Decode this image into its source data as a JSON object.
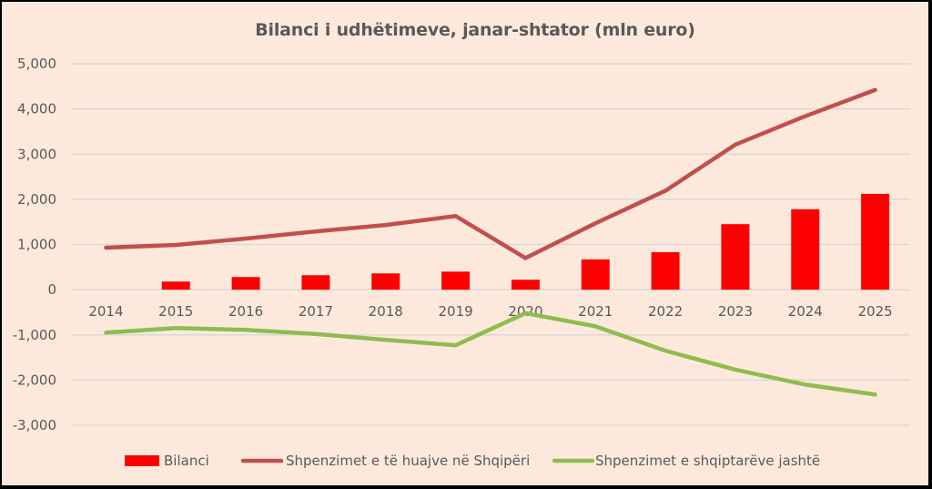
{
  "chart_data": {
    "type": "bar+line",
    "title": "Bilanci i udhëtimeve, janar-shtator (mln euro)",
    "xlabel": "",
    "ylabel": "",
    "categories": [
      "2014",
      "2015",
      "2016",
      "2017",
      "2018",
      "2019",
      "2020",
      "2021",
      "2022",
      "2023",
      "2024",
      "2025"
    ],
    "ylim": [
      -3000,
      5000
    ],
    "yticks": [
      5000,
      4000,
      3000,
      2000,
      1000,
      0,
      -1000,
      -2000,
      -3000
    ],
    "ytick_labels": [
      "5,000",
      "4,000",
      "3,000",
      "2,000",
      "1,000",
      "0",
      "-1,000",
      "-2,000",
      "-3,000"
    ],
    "grid": true,
    "legend_position": "bottom",
    "series": [
      {
        "name": "Bilanci",
        "type": "bar",
        "color": "#ff0000",
        "values": [
          null,
          180,
          280,
          320,
          360,
          400,
          220,
          670,
          830,
          1450,
          1780,
          2120
        ]
      },
      {
        "name": "Shpenzimet e të huajve në Shqipëri",
        "type": "line",
        "color": "#c0504d",
        "values": [
          930,
          990,
          1130,
          1290,
          1430,
          1630,
          700,
          1470,
          2190,
          3210,
          3840,
          4420
        ]
      },
      {
        "name": "Shpenzimet e shqiptarëve jashtë",
        "type": "line",
        "color": "#8fbc4f",
        "values": [
          -950,
          -850,
          -890,
          -980,
          -1110,
          -1230,
          -520,
          -810,
          -1350,
          -1770,
          -2100,
          -2320
        ]
      }
    ]
  }
}
